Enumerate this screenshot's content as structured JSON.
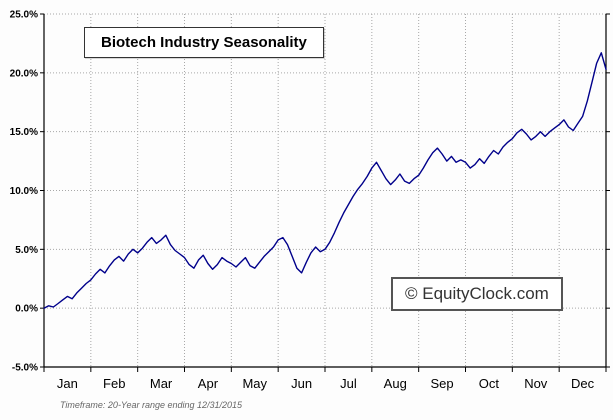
{
  "title": "Biotech Industry Seasonality",
  "watermark": "© EquityClock.com",
  "footer": "Timeframe: 20-Year range ending 12/31/2015",
  "chart_data": {
    "type": "line",
    "title": "Biotech Industry Seasonality",
    "xlabel": "",
    "ylabel": "",
    "categories": [
      "Jan",
      "Feb",
      "Mar",
      "Apr",
      "May",
      "Jun",
      "Jul",
      "Aug",
      "Sep",
      "Oct",
      "Nov",
      "Dec"
    ],
    "xlim": [
      0,
      12
    ],
    "ylim": [
      -5,
      25
    ],
    "y_ticks": [
      25,
      20,
      15,
      10,
      5,
      0,
      -5
    ],
    "y_tick_labels": [
      "25.0%",
      "20.0%",
      "15.0%",
      "10.0%",
      "5.0%",
      "0.0%",
      "-5.0%"
    ],
    "grid": true,
    "legend": "none",
    "line_color": "#00008B",
    "series": [
      {
        "name": "Biotech Industry Seasonality",
        "x_start": 0,
        "x_step": 0.1,
        "values": [
          0.0,
          0.2,
          0.1,
          0.4,
          0.7,
          1.0,
          0.8,
          1.3,
          1.7,
          2.1,
          2.4,
          2.9,
          3.3,
          3.0,
          3.6,
          4.1,
          4.4,
          4.0,
          4.6,
          5.0,
          4.7,
          5.1,
          5.6,
          6.0,
          5.5,
          5.8,
          6.2,
          5.4,
          4.9,
          4.6,
          4.3,
          3.7,
          3.4,
          4.1,
          4.5,
          3.8,
          3.3,
          3.7,
          4.3,
          4.0,
          3.8,
          3.5,
          3.9,
          4.3,
          3.6,
          3.4,
          3.9,
          4.4,
          4.8,
          5.2,
          5.8,
          6.0,
          5.4,
          4.4,
          3.4,
          3.0,
          3.9,
          4.7,
          5.2,
          4.8,
          5.0,
          5.6,
          6.4,
          7.3,
          8.1,
          8.8,
          9.5,
          10.1,
          10.6,
          11.2,
          11.9,
          12.4,
          11.7,
          11.0,
          10.5,
          10.9,
          11.4,
          10.8,
          10.6,
          11.0,
          11.3,
          11.9,
          12.6,
          13.2,
          13.6,
          13.1,
          12.5,
          12.9,
          12.4,
          12.6,
          12.4,
          11.9,
          12.2,
          12.7,
          12.3,
          12.9,
          13.4,
          13.1,
          13.7,
          14.1,
          14.4,
          14.9,
          15.2,
          14.8,
          14.3,
          14.6,
          15.0,
          14.6,
          15.0,
          15.3,
          15.6,
          16.0,
          15.4,
          15.1,
          15.7,
          16.3,
          17.6,
          19.2,
          20.8,
          21.7,
          20.3
        ]
      }
    ]
  }
}
